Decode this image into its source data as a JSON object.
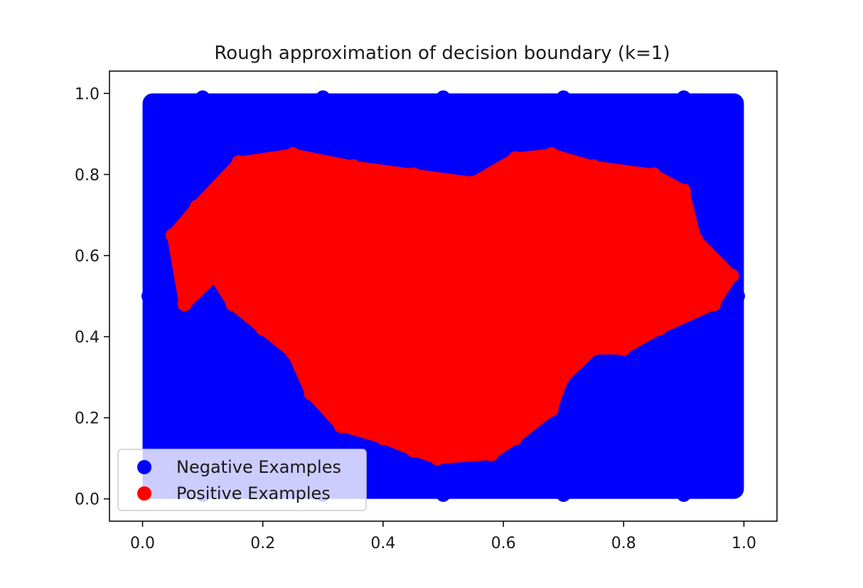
{
  "chart_data": {
    "type": "scatter",
    "title": "Rough approximation of decision boundary (k=1)",
    "xlabel": "",
    "ylabel": "",
    "xlim": [
      -0.055,
      1.055
    ],
    "ylim": [
      -0.055,
      1.055
    ],
    "xticks": [
      0.0,
      0.2,
      0.4,
      0.6,
      0.8,
      1.0
    ],
    "xtick_labels": [
      "0.0",
      "0.2",
      "0.4",
      "0.6",
      "0.8",
      "1.0"
    ],
    "yticks": [
      0.0,
      0.2,
      0.4,
      0.6,
      0.8,
      1.0
    ],
    "ytick_labels": [
      "0.0",
      "0.2",
      "0.4",
      "0.6",
      "0.8",
      "1.0"
    ],
    "grid": false,
    "legend_position": "lower-left",
    "series": [
      {
        "name": "Negative Examples",
        "color": "#0000ff",
        "points": [
          [
            0.02,
            0.02
          ],
          [
            0.1,
            0.01
          ],
          [
            0.2,
            0.02
          ],
          [
            0.3,
            0.01
          ],
          [
            0.4,
            0.02
          ],
          [
            0.5,
            0.01
          ],
          [
            0.6,
            0.02
          ],
          [
            0.7,
            0.01
          ],
          [
            0.8,
            0.02
          ],
          [
            0.9,
            0.01
          ],
          [
            0.98,
            0.02
          ],
          [
            0.01,
            0.5
          ],
          [
            0.99,
            0.5
          ],
          [
            0.02,
            0.98
          ],
          [
            0.1,
            0.99
          ],
          [
            0.2,
            0.98
          ],
          [
            0.3,
            0.99
          ],
          [
            0.4,
            0.98
          ],
          [
            0.5,
            0.99
          ],
          [
            0.6,
            0.98
          ],
          [
            0.7,
            0.99
          ],
          [
            0.8,
            0.98
          ],
          [
            0.9,
            0.99
          ],
          [
            0.98,
            0.98
          ],
          [
            0.03,
            0.25
          ],
          [
            0.97,
            0.25
          ],
          [
            0.03,
            0.75
          ],
          [
            0.97,
            0.75
          ],
          [
            0.15,
            0.1
          ],
          [
            0.85,
            0.1
          ],
          [
            0.12,
            0.88
          ],
          [
            0.88,
            0.88
          ],
          [
            0.92,
            0.4
          ],
          [
            0.06,
            0.4
          ],
          [
            0.75,
            0.2
          ]
        ]
      },
      {
        "name": "Positive Examples",
        "color": "#ff0000",
        "points": [
          [
            0.07,
            0.48
          ],
          [
            0.05,
            0.65
          ],
          [
            0.09,
            0.72
          ],
          [
            0.16,
            0.83
          ],
          [
            0.25,
            0.85
          ],
          [
            0.35,
            0.82
          ],
          [
            0.45,
            0.8
          ],
          [
            0.55,
            0.78
          ],
          [
            0.62,
            0.84
          ],
          [
            0.68,
            0.85
          ],
          [
            0.75,
            0.82
          ],
          [
            0.85,
            0.8
          ],
          [
            0.9,
            0.76
          ],
          [
            0.92,
            0.64
          ],
          [
            0.98,
            0.55
          ],
          [
            0.95,
            0.48
          ],
          [
            0.86,
            0.42
          ],
          [
            0.8,
            0.37
          ],
          [
            0.75,
            0.37
          ],
          [
            0.7,
            0.3
          ],
          [
            0.68,
            0.22
          ],
          [
            0.62,
            0.15
          ],
          [
            0.58,
            0.11
          ],
          [
            0.49,
            0.1
          ],
          [
            0.45,
            0.12
          ],
          [
            0.4,
            0.15
          ],
          [
            0.33,
            0.18
          ],
          [
            0.28,
            0.26
          ],
          [
            0.25,
            0.36
          ],
          [
            0.2,
            0.42
          ],
          [
            0.15,
            0.48
          ],
          [
            0.12,
            0.55
          ],
          [
            0.3,
            0.6
          ],
          [
            0.5,
            0.55
          ],
          [
            0.7,
            0.6
          ],
          [
            0.4,
            0.4
          ],
          [
            0.6,
            0.4
          ],
          [
            0.5,
            0.3
          ]
        ]
      }
    ]
  }
}
